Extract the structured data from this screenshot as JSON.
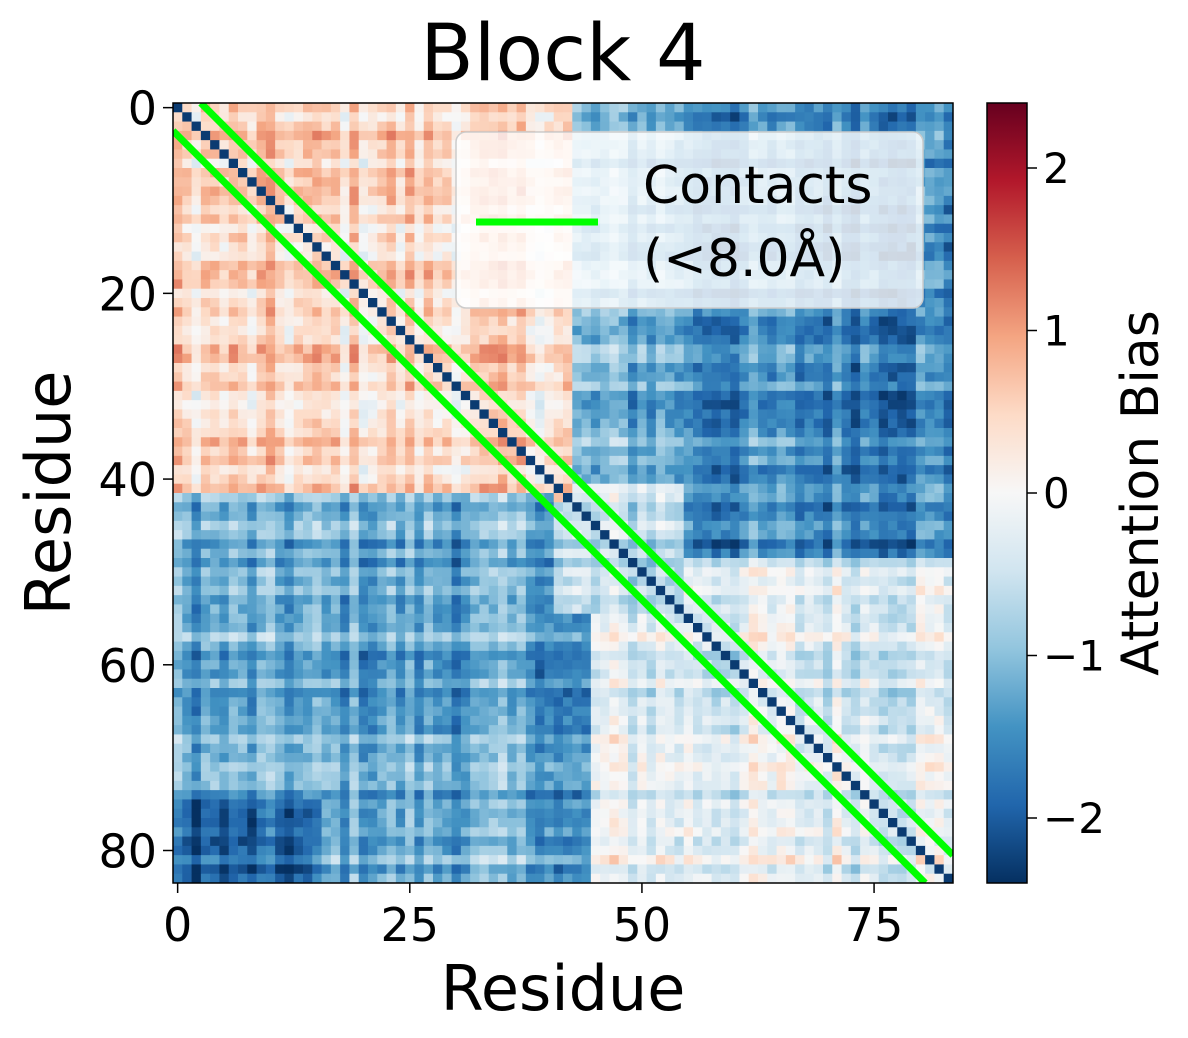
{
  "chart_data": {
    "type": "heatmap",
    "title": "Block 4",
    "xlabel": "Residue",
    "ylabel": "Residue",
    "n": 84,
    "x_ticks": [
      0,
      25,
      50,
      75
    ],
    "y_ticks": [
      0,
      20,
      40,
      60,
      80
    ],
    "colorbar": {
      "label": "Attention Bias",
      "colormap": "RdBu_r",
      "vmin": -2.4,
      "vmax": 2.4,
      "ticks": [
        -2,
        -1,
        0,
        1,
        2
      ],
      "tick_labels": [
        "−2",
        "−1",
        "0",
        "1",
        "2"
      ]
    },
    "legend": {
      "placement": "top-right",
      "label_lines": [
        "Contacts",
        "(<8.0Å)"
      ],
      "color": "#00ff00"
    },
    "contact_threshold_angstrom": 8.0,
    "diagonal_bias": -2.3,
    "bias_regions": [
      {
        "rows": [
          0,
          42
        ],
        "cols": [
          0,
          42
        ],
        "value": 0.4
      },
      {
        "rows": [
          0,
          48
        ],
        "cols": [
          55,
          83
        ],
        "value": -1.6
      },
      {
        "rows": [
          42,
          83
        ],
        "cols": [
          0,
          40
        ],
        "value": -1.2
      },
      {
        "rows": [
          55,
          83
        ],
        "cols": [
          45,
          83
        ],
        "value": -0.2
      },
      {
        "rows": [
          75,
          83
        ],
        "cols": [
          0,
          15
        ],
        "value": -2.0
      }
    ],
    "contact_color": "#00ff00"
  }
}
